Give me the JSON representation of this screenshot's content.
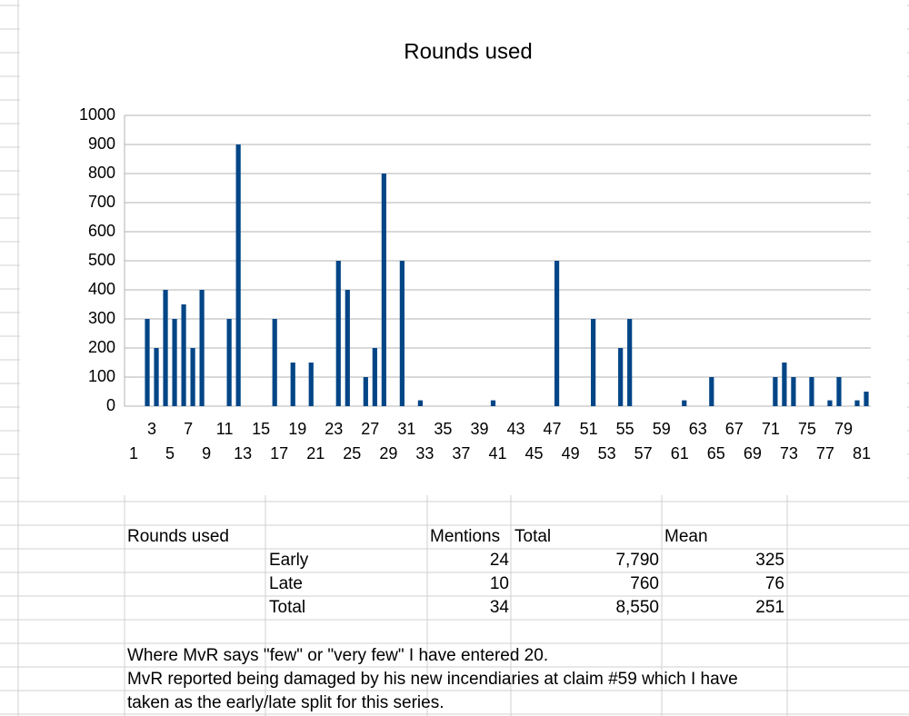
{
  "chart_data": {
    "type": "bar",
    "title": "Rounds used",
    "categories": [
      1,
      null,
      3,
      null,
      5,
      null,
      7,
      null,
      9,
      null,
      11,
      null,
      13,
      null,
      15,
      null,
      17,
      null,
      19,
      null,
      21,
      null,
      23,
      null,
      25,
      null,
      27,
      null,
      29,
      null,
      31,
      null,
      33,
      null,
      35,
      null,
      37,
      null,
      39,
      null,
      41,
      null,
      43,
      null,
      45,
      null,
      47,
      null,
      49,
      null,
      51,
      null,
      53,
      null,
      55,
      null,
      57,
      null,
      59,
      null,
      61,
      null,
      63,
      null,
      65,
      null,
      67,
      null,
      69,
      null,
      71,
      null,
      73,
      null,
      75,
      null,
      77,
      null,
      79,
      null,
      81,
      null
    ],
    "values": [
      null,
      null,
      300,
      200,
      400,
      300,
      350,
      200,
      400,
      null,
      null,
      300,
      900,
      null,
      null,
      null,
      300,
      null,
      150,
      null,
      150,
      null,
      null,
      500,
      400,
      null,
      100,
      200,
      800,
      null,
      500,
      null,
      20,
      null,
      null,
      null,
      null,
      null,
      null,
      null,
      20,
      null,
      null,
      null,
      null,
      null,
      null,
      500,
      null,
      null,
      null,
      300,
      null,
      null,
      200,
      300,
      null,
      null,
      null,
      null,
      null,
      20,
      null,
      null,
      100,
      null,
      null,
      null,
      null,
      null,
      null,
      100,
      150,
      100,
      null,
      100,
      null,
      20,
      100,
      null,
      20,
      50
    ],
    "color": "#004586",
    "ylim": [
      0,
      1000
    ],
    "yticks": [
      0,
      100,
      200,
      300,
      400,
      500,
      600,
      700,
      800,
      900,
      1000
    ],
    "grid": true
  },
  "table": {
    "header": [
      "Rounds used",
      "Mentions",
      "Total",
      "Mean"
    ],
    "rows": [
      [
        "Early",
        "24",
        "7,790",
        "325"
      ],
      [
        "Late",
        "10",
        "760",
        "76"
      ],
      [
        "Total",
        "34",
        "8,550",
        "251"
      ]
    ]
  },
  "notes": [
    "Where MvR says \"few\" or \"very few\" I have entered 20.",
    "MvR reported being damaged by his new incendiaries at claim #59 which I have",
    "taken as the early/late split for this series."
  ]
}
